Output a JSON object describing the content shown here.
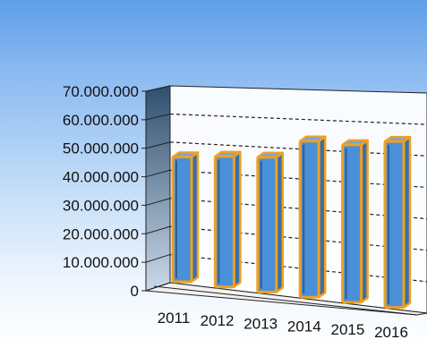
{
  "chart_data": {
    "type": "bar",
    "categories": [
      "2011",
      "2012",
      "2013",
      "2014",
      "2015",
      "2016"
    ],
    "values": [
      44000000,
      46000000,
      47500000,
      55000000,
      55500000,
      58500000
    ],
    "ylim": [
      0,
      70000000
    ],
    "yticks": [
      "0",
      "10.000.000",
      "20.000.000",
      "30.000.000",
      "40.000.000",
      "50.000.000",
      "60.000.000",
      "70.000.000"
    ],
    "grid": true,
    "three_d": true,
    "colors": {
      "bar_fill": "#4a90d9",
      "bar_border": "#f0a020",
      "back_wall": "#ffffff",
      "side_wall": "#3f5f7e",
      "gridline": "#222222"
    }
  }
}
